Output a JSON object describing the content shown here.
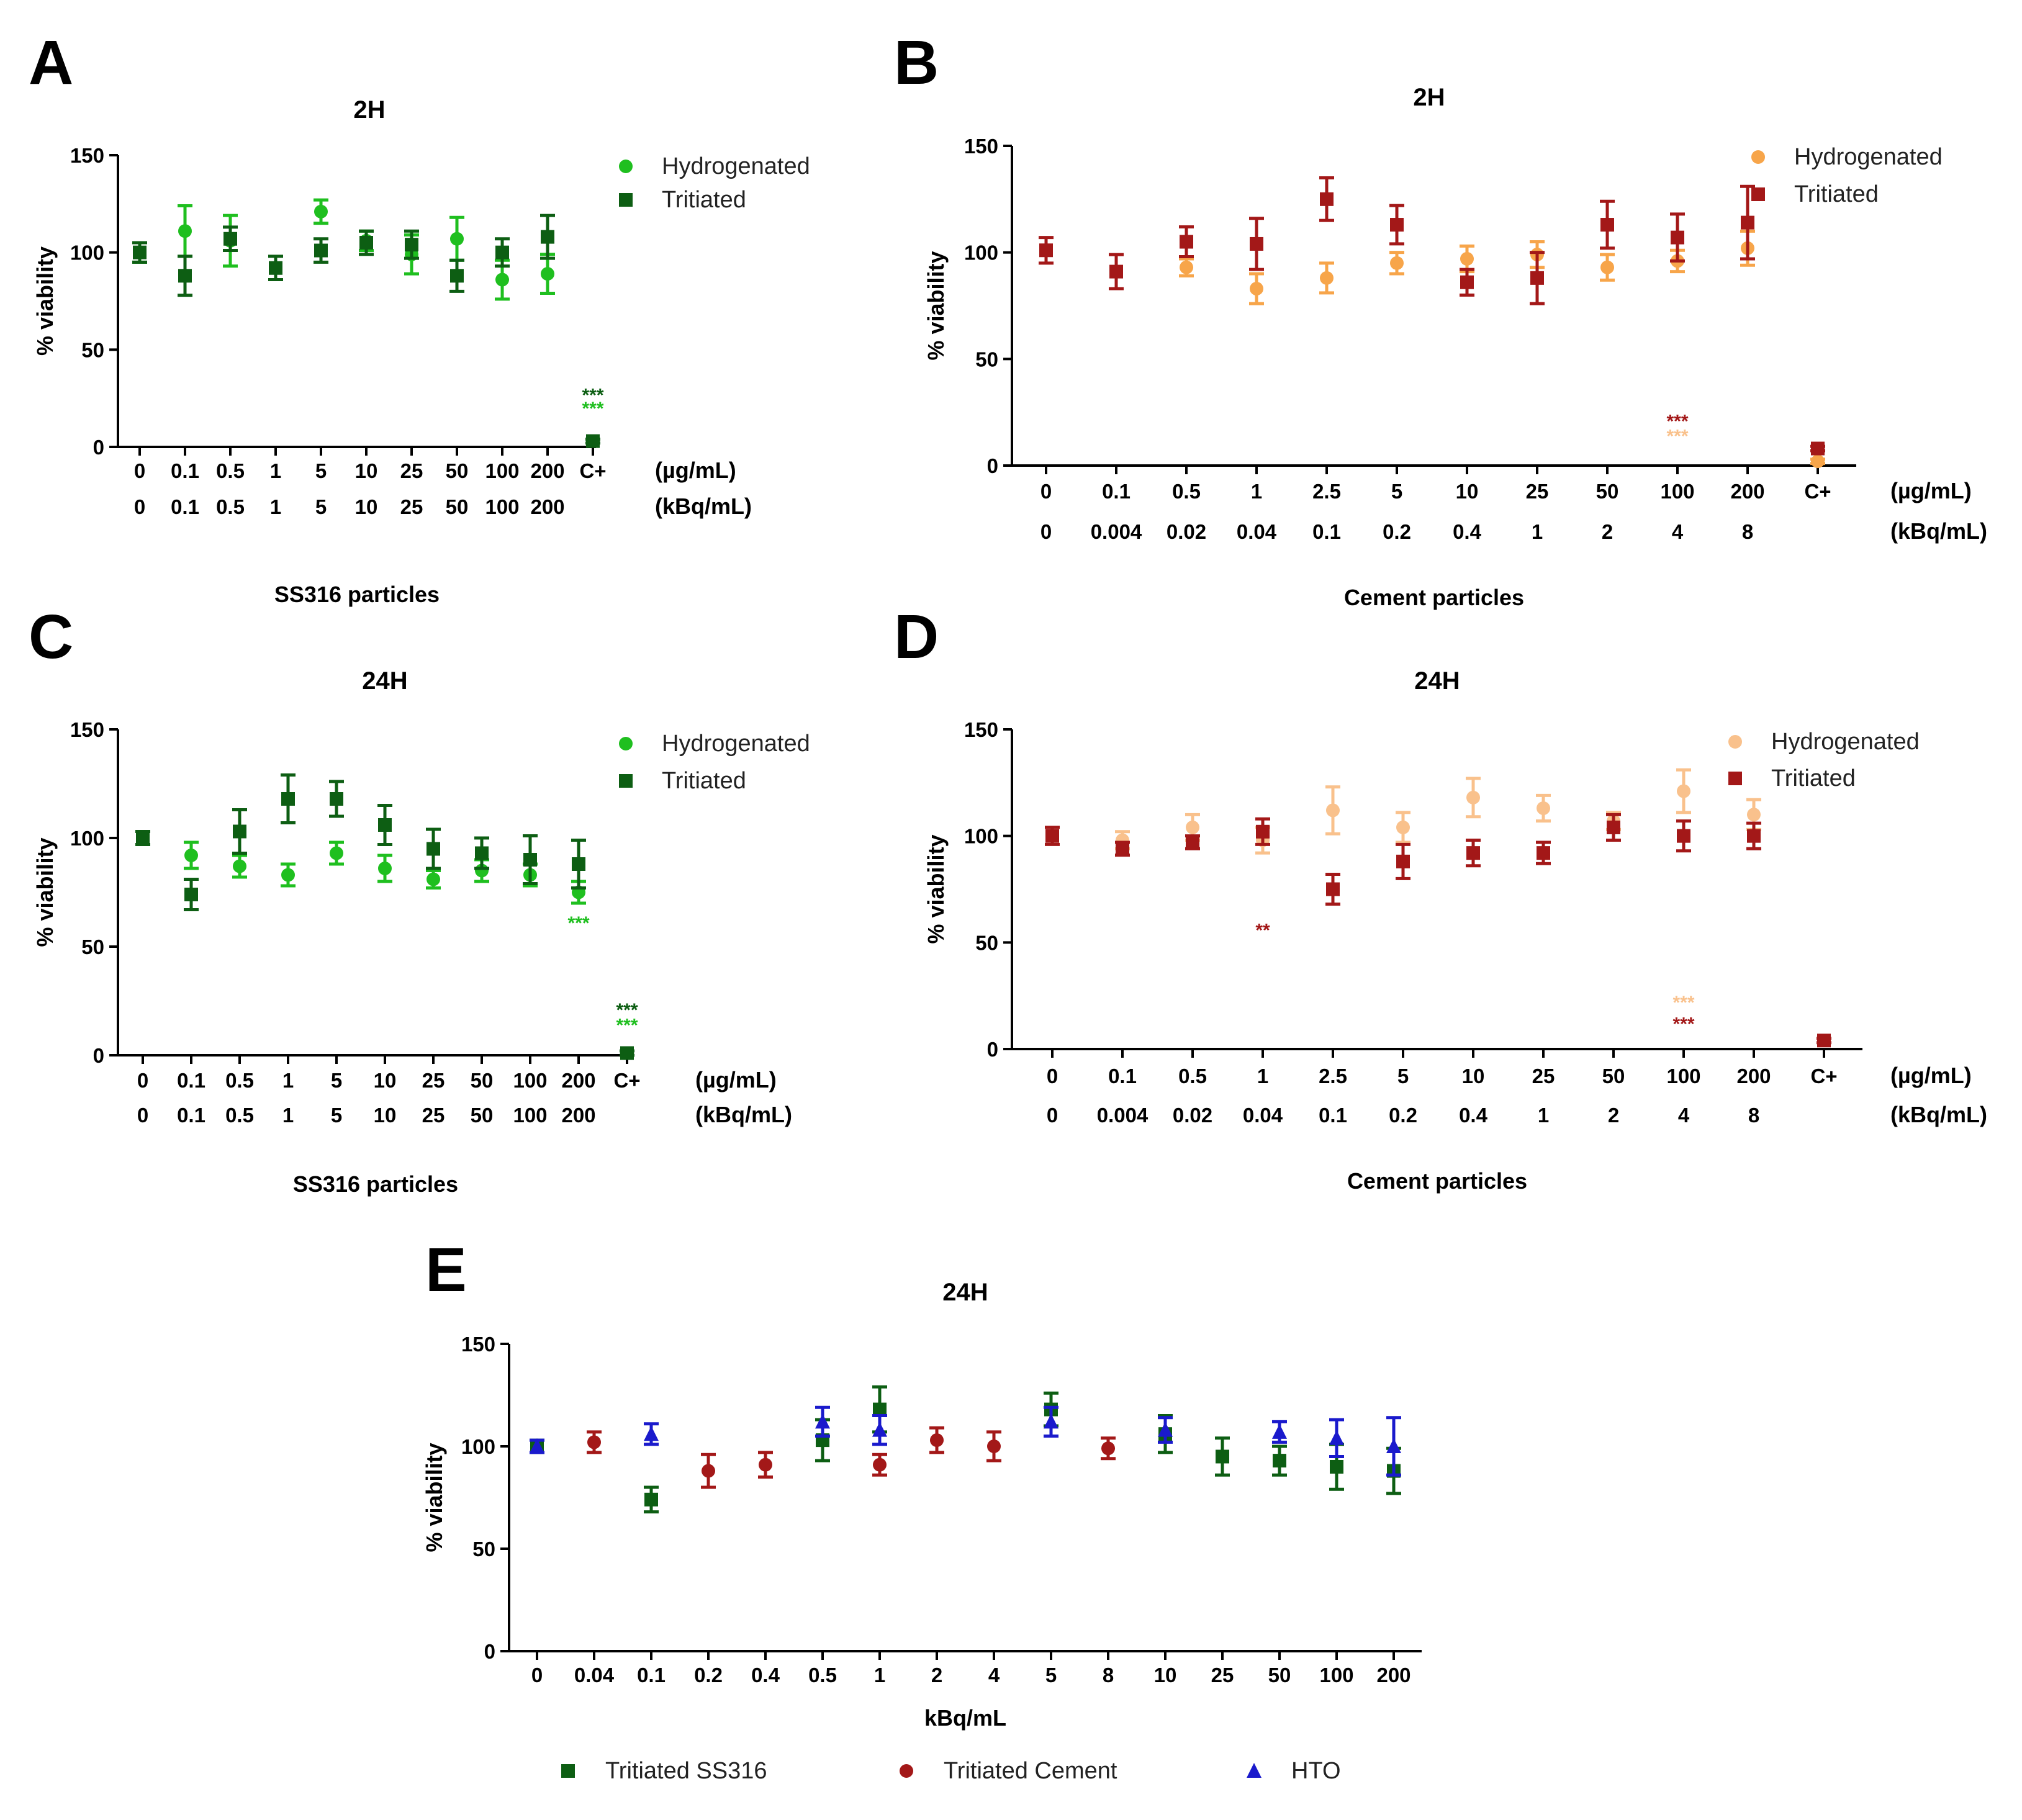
{
  "chart_data": [
    {
      "id": "A",
      "type": "scatter",
      "letter": "A",
      "title": "2H",
      "ylabel": "% viability",
      "xlabel": "SS316 particles",
      "ylim": [
        0,
        150
      ],
      "yticks": [
        0,
        50,
        100,
        150
      ],
      "categories": [
        "0",
        "0.1",
        "0.5",
        "1",
        "5",
        "10",
        "25",
        "50",
        "100",
        "200",
        "C+"
      ],
      "x_rows": [
        {
          "unit": "(µg/mL)",
          "labels": [
            "0",
            "0.1",
            "0.5",
            "1",
            "5",
            "10",
            "25",
            "50",
            "100",
            "200",
            "C+"
          ]
        },
        {
          "unit": "(kBq/mL)",
          "labels": [
            "0",
            "0.1",
            "0.5",
            "1",
            "5",
            "10",
            "25",
            "50",
            "100",
            "200",
            ""
          ]
        }
      ],
      "series": [
        {
          "name": "Hydrogenated",
          "color": "#1fbf1f",
          "marker": "circle",
          "values": [
            100,
            111,
            106,
            null,
            121,
            106,
            99,
            107,
            86,
            89,
            null
          ],
          "errors": [
            5,
            13,
            13,
            null,
            6,
            5,
            10,
            11,
            10,
            10,
            null
          ]
        },
        {
          "name": "Tritiated",
          "color": "#0d5e13",
          "marker": "square",
          "values": [
            100,
            88,
            107,
            92,
            101,
            105,
            104,
            88,
            100,
            108,
            3
          ],
          "errors": [
            5,
            10,
            6,
            6,
            6,
            6,
            7,
            8,
            7,
            11,
            1
          ]
        }
      ],
      "annotations": [
        {
          "text": "***",
          "category": "C+",
          "y": 28,
          "color": "#0d5e13"
        },
        {
          "text": "***",
          "category": "C+",
          "y": 21,
          "color": "#1fbf1f"
        }
      ]
    },
    {
      "id": "B",
      "type": "scatter",
      "letter": "B",
      "title": "2H",
      "ylabel": "% viability",
      "xlabel": "Cement particles",
      "ylim": [
        0,
        150
      ],
      "yticks": [
        0,
        50,
        100,
        150
      ],
      "categories": [
        "0",
        "0.1",
        "0.5",
        "1",
        "2.5",
        "5",
        "10",
        "25",
        "50",
        "100",
        "200",
        "C+"
      ],
      "x_rows": [
        {
          "unit": "(µg/mL)",
          "labels": [
            "0",
            "0.1",
            "0.5",
            "1",
            "2.5",
            "5",
            "10",
            "25",
            "50",
            "100",
            "200",
            "C+"
          ]
        },
        {
          "unit": "(kBq/mL)",
          "labels": [
            "0",
            "0.004",
            "0.02",
            "0.04",
            "0.1",
            "0.2",
            "0.4",
            "1",
            "2",
            "4",
            "8",
            ""
          ]
        }
      ],
      "series": [
        {
          "name": "Hydrogenated",
          "color": "#f7a54a",
          "marker": "circle",
          "values": [
            null,
            null,
            93,
            83,
            88,
            95,
            97,
            99,
            93,
            96,
            102,
            2
          ],
          "errors": [
            null,
            null,
            4,
            7,
            7,
            5,
            6,
            6,
            6,
            5,
            8,
            1
          ]
        },
        {
          "name": "Tritiated",
          "color": "#a31818",
          "marker": "square",
          "values": [
            101,
            91,
            105,
            104,
            125,
            113,
            86,
            88,
            113,
            107,
            114,
            8
          ],
          "errors": [
            6,
            8,
            7,
            12,
            10,
            9,
            6,
            12,
            11,
            11,
            17,
            1
          ]
        }
      ],
      "annotations": [
        {
          "text": "***",
          "category": "100",
          "y": 22,
          "color": "#a31818"
        },
        {
          "text": "***",
          "category": "100",
          "y": 15,
          "color": "#f9c18c"
        }
      ]
    },
    {
      "id": "C",
      "type": "scatter",
      "letter": "C",
      "title": "24H",
      "ylabel": "% viability",
      "xlabel": "SS316 particles",
      "ylim": [
        0,
        150
      ],
      "yticks": [
        0,
        50,
        100,
        150
      ],
      "categories": [
        "0",
        "0.1",
        "0.5",
        "1",
        "5",
        "10",
        "25",
        "50",
        "100",
        "200",
        "C+"
      ],
      "x_rows": [
        {
          "unit": "(µg/mL)",
          "labels": [
            "0",
            "0.1",
            "0.5",
            "1",
            "5",
            "10",
            "25",
            "50",
            "100",
            "200",
            "C+"
          ]
        },
        {
          "unit": "(kBq/mL)",
          "labels": [
            "0",
            "0.1",
            "0.5",
            "1",
            "5",
            "10",
            "25",
            "50",
            "100",
            "200",
            ""
          ]
        }
      ],
      "series": [
        {
          "name": "Hydrogenated",
          "color": "#1fbf1f",
          "marker": "circle",
          "values": [
            100,
            92,
            87,
            83,
            93,
            86,
            81,
            85,
            83,
            75,
            null
          ],
          "errors": [
            3,
            6,
            5,
            5,
            5,
            6,
            4,
            5,
            5,
            5,
            null
          ]
        },
        {
          "name": "Tritiated",
          "color": "#0d5e13",
          "marker": "square",
          "values": [
            100,
            74,
            103,
            118,
            118,
            106,
            95,
            93,
            90,
            88,
            1
          ],
          "errors": [
            3,
            7,
            10,
            11,
            8,
            9,
            9,
            7,
            11,
            11,
            1
          ]
        }
      ],
      "annotations": [
        {
          "text": "***",
          "category": "200",
          "y": 62,
          "color": "#1fbf1f"
        },
        {
          "text": "***",
          "category": "C+",
          "y": 22,
          "color": "#0d5e13"
        },
        {
          "text": "***",
          "category": "C+",
          "y": 15,
          "color": "#1fbf1f"
        }
      ]
    },
    {
      "id": "D",
      "type": "scatter",
      "letter": "D",
      "title": "24H",
      "ylabel": "% viability",
      "xlabel": "Cement particles",
      "ylim": [
        0,
        150
      ],
      "yticks": [
        0,
        50,
        100,
        150
      ],
      "categories": [
        "0",
        "0.1",
        "0.5",
        "1",
        "2.5",
        "5",
        "10",
        "25",
        "50",
        "100",
        "200",
        "C+"
      ],
      "x_rows": [
        {
          "unit": "(µg/mL)",
          "labels": [
            "0",
            "0.1",
            "0.5",
            "1",
            "2.5",
            "5",
            "10",
            "25",
            "50",
            "100",
            "200",
            "C+"
          ]
        },
        {
          "unit": "(kBq/mL)",
          "labels": [
            "0",
            "0.004",
            "0.02",
            "0.04",
            "0.1",
            "0.2",
            "0.4",
            "1",
            "2",
            "4",
            "8",
            ""
          ]
        }
      ],
      "series": [
        {
          "name": "Hydrogenated",
          "color": "#f9c18c",
          "marker": "circle",
          "values": [
            null,
            98,
            104,
            98,
            112,
            104,
            118,
            113,
            107,
            121,
            110,
            null
          ],
          "errors": [
            null,
            4,
            6,
            6,
            11,
            7,
            9,
            6,
            4,
            10,
            7,
            null
          ]
        },
        {
          "name": "Tritiated",
          "color": "#a31818",
          "marker": "square",
          "values": [
            100,
            94,
            97,
            102,
            75,
            88,
            92,
            92,
            104,
            100,
            100,
            4
          ],
          "errors": [
            4,
            3,
            3,
            6,
            7,
            8,
            6,
            5,
            6,
            7,
            6,
            1
          ]
        }
      ],
      "annotations": [
        {
          "text": "**",
          "category": "1",
          "y": 57,
          "color": "#a31818"
        },
        {
          "text": "***",
          "category": "100",
          "y": 23,
          "color": "#f9c18c"
        },
        {
          "text": "***",
          "category": "100",
          "y": 13,
          "color": "#a31818"
        }
      ]
    },
    {
      "id": "E",
      "type": "scatter",
      "letter": "E",
      "title": "24H",
      "ylabel": "% viability",
      "xlabel": "kBq/mL",
      "ylim": [
        0,
        150
      ],
      "yticks": [
        0,
        50,
        100,
        150
      ],
      "categories": [
        "0",
        "0.04",
        "0.1",
        "0.2",
        "0.4",
        "0.5",
        "1",
        "2",
        "4",
        "5",
        "8",
        "10",
        "25",
        "50",
        "100",
        "200"
      ],
      "x_rows": [
        {
          "unit": "",
          "labels": [
            "0",
            "0.04",
            "0.1",
            "0.2",
            "0.4",
            "0.5",
            "1",
            "2",
            "4",
            "5",
            "8",
            "10",
            "25",
            "50",
            "100",
            "200"
          ]
        }
      ],
      "series": [
        {
          "name": "Tritiated SS316",
          "color": "#0d5e13",
          "marker": "square",
          "values": [
            100,
            null,
            74,
            null,
            null,
            103,
            118,
            null,
            null,
            118,
            null,
            106,
            95,
            93,
            90,
            88
          ],
          "errors": [
            3,
            null,
            6,
            null,
            null,
            10,
            11,
            null,
            null,
            8,
            null,
            9,
            9,
            7,
            11,
            11
          ]
        },
        {
          "name": "Tritiated Cement",
          "color": "#a31818",
          "marker": "circle",
          "values": [
            null,
            102,
            null,
            88,
            91,
            null,
            91,
            103,
            100,
            null,
            99,
            null,
            null,
            null,
            null,
            null
          ],
          "errors": [
            null,
            5,
            null,
            8,
            6,
            null,
            5,
            6,
            7,
            null,
            5,
            null,
            null,
            null,
            null,
            null
          ]
        },
        {
          "name": "HTO",
          "color": "#1a1acc",
          "marker": "triangle",
          "values": [
            100,
            null,
            106,
            null,
            null,
            112,
            108,
            null,
            null,
            112,
            null,
            108,
            null,
            107,
            104,
            100
          ],
          "errors": [
            3,
            null,
            5,
            null,
            null,
            7,
            7,
            null,
            null,
            7,
            null,
            6,
            null,
            5,
            9,
            14
          ]
        }
      ],
      "annotations": []
    }
  ]
}
